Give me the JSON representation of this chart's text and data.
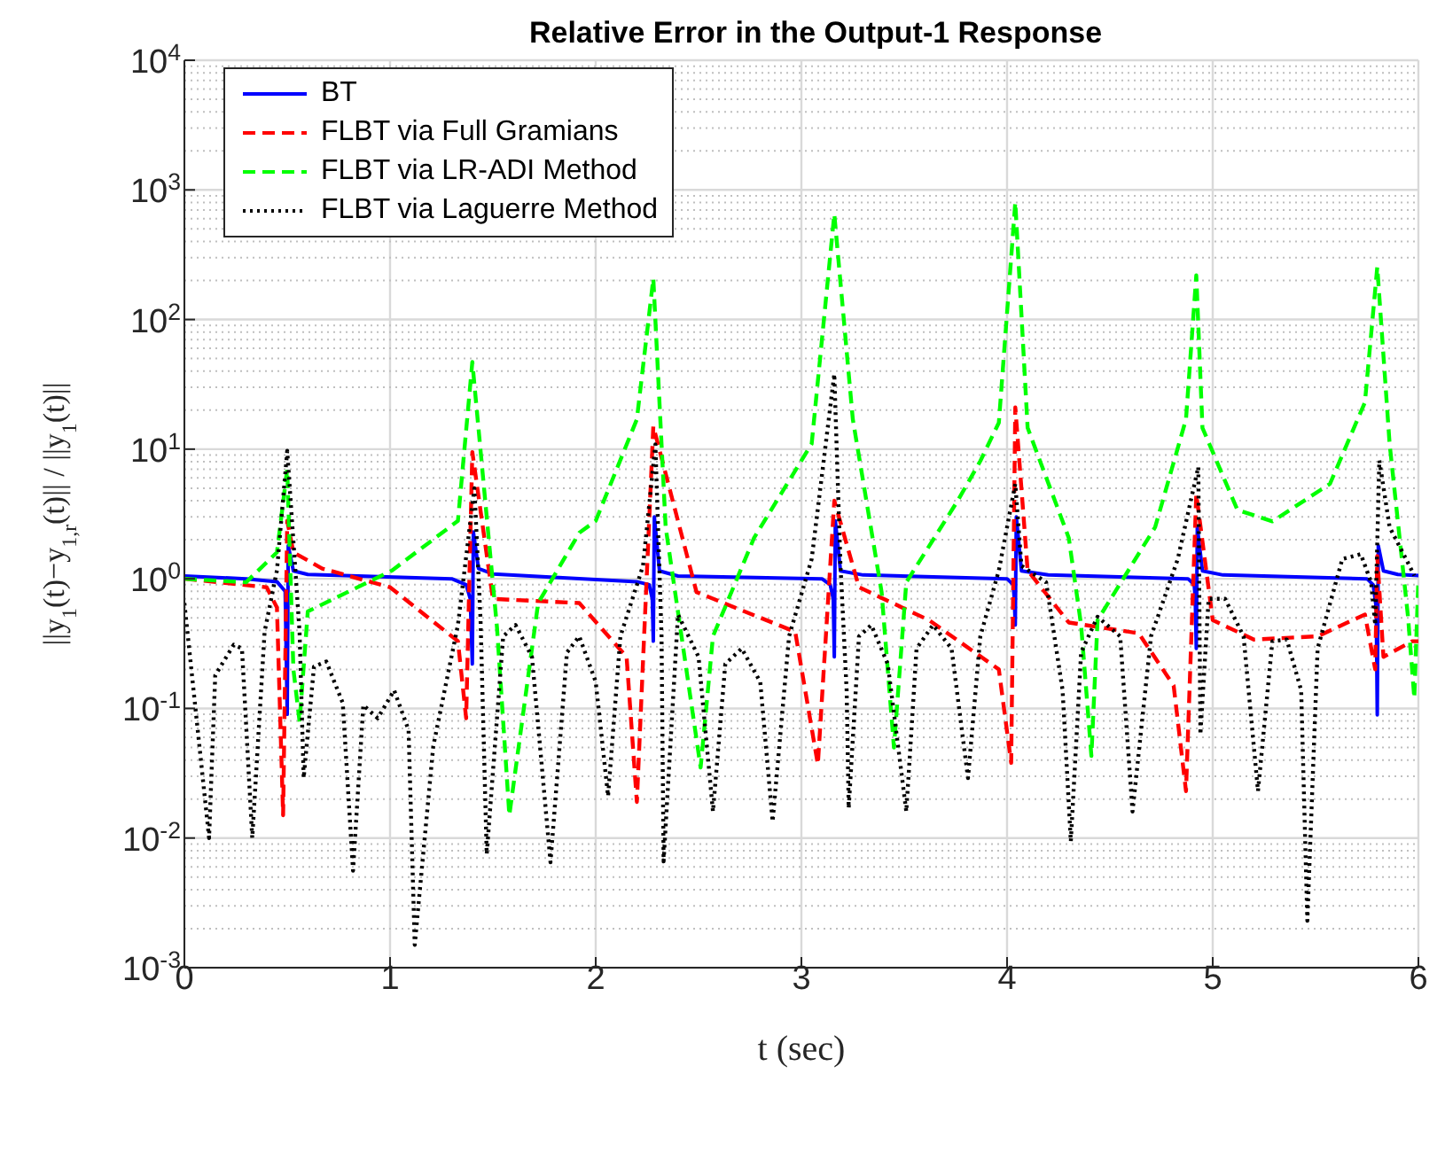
{
  "chart_data": {
    "type": "line",
    "title": "Relative Error in the Output-1 Response",
    "xlabel": "t (sec)",
    "ylabel": "||y$_{1}$(t)−y$_{1,r}$(t)|| / ||y$_{1}$(t)||",
    "log": "y",
    "grid": true,
    "legend": "top left",
    "xlim": [
      0,
      6
    ],
    "xticks": [
      0,
      1,
      2,
      3,
      4,
      5,
      6
    ],
    "ylim": [
      0.001,
      10000
    ],
    "yticks": [
      {
        "value": 0.001,
        "label": "10$^{-3}$"
      },
      {
        "value": 0.01,
        "label": "10$^{-2}$"
      },
      {
        "value": 0.1,
        "label": "10$^{-1}$"
      },
      {
        "value": 1,
        "label": "10$^{0}$"
      },
      {
        "value": 10,
        "label": "10$^{1}$"
      },
      {
        "value": 100,
        "label": "10$^{2}$"
      },
      {
        "value": 1000,
        "label": "10$^{3}$"
      },
      {
        "value": 10000,
        "label": "10$^{4}$"
      }
    ],
    "series": [
      {
        "name": "BT",
        "color": "#0000ff",
        "line_style": "solid",
        "x": [
          0,
          0.3,
          0.45,
          0.49,
          0.5,
          0.505,
          0.53,
          0.6,
          1.3,
          1.37,
          1.39,
          1.4,
          1.405,
          1.43,
          1.5,
          2.2,
          2.26,
          2.275,
          2.28,
          2.285,
          2.31,
          2.4,
          3.1,
          3.14,
          3.155,
          3.16,
          3.165,
          3.19,
          3.3,
          4.0,
          4.03,
          4.035,
          4.04,
          4.045,
          4.07,
          4.2,
          4.88,
          4.91,
          4.915,
          4.92,
          4.925,
          4.95,
          5.05,
          5.75,
          5.78,
          5.795,
          5.8,
          5.805,
          5.83,
          5.9,
          6.0
        ],
        "values": [
          1.05,
          1.0,
          0.95,
          0.8,
          0.09,
          1.8,
          1.15,
          1.08,
          1.0,
          0.9,
          0.7,
          0.22,
          2.3,
          1.2,
          1.09,
          0.95,
          0.9,
          0.7,
          0.33,
          3.0,
          1.15,
          1.05,
          1.0,
          0.9,
          0.7,
          0.25,
          2.8,
          1.15,
          1.07,
          1.0,
          0.9,
          0.7,
          0.44,
          3.0,
          1.15,
          1.07,
          1.0,
          0.9,
          0.7,
          0.29,
          2.5,
          1.15,
          1.07,
          1.0,
          0.9,
          0.6,
          0.089,
          1.8,
          1.15,
          1.08,
          1.06
        ]
      },
      {
        "name": "FLBT via Full Gramians",
        "color": "#ff0000",
        "line_style": "dashed",
        "x": [
          0,
          0.4,
          0.45,
          0.48,
          0.5,
          0.53,
          0.67,
          1.0,
          1.33,
          1.37,
          1.4,
          1.5,
          1.92,
          2.15,
          2.2,
          2.28,
          2.49,
          2.97,
          3.08,
          3.16,
          3.28,
          3.62,
          3.96,
          4.02,
          4.04,
          4.1,
          4.3,
          4.64,
          4.81,
          4.87,
          4.92,
          5.0,
          5.2,
          5.51,
          5.74,
          5.79,
          5.8,
          5.83,
          5.97,
          6.0
        ],
        "values": [
          1.0,
          0.86,
          0.6,
          0.015,
          2.8,
          1.6,
          1.2,
          0.86,
          0.33,
          0.084,
          9.5,
          0.7,
          0.65,
          0.25,
          0.019,
          15,
          0.79,
          0.39,
          0.037,
          4.0,
          0.86,
          0.48,
          0.2,
          0.038,
          21,
          1.16,
          0.46,
          0.38,
          0.15,
          0.023,
          4.5,
          0.48,
          0.34,
          0.36,
          0.53,
          0.2,
          1.5,
          0.25,
          0.33,
          0.33
        ]
      },
      {
        "name": "FLBT via LR-ADI Method",
        "color": "#00ff00",
        "line_style": "dashed",
        "x": [
          0,
          0.3,
          0.45,
          0.5,
          0.53,
          0.56,
          0.6,
          1.01,
          1.33,
          1.4,
          1.52,
          1.58,
          1.72,
          1.92,
          2.0,
          2.2,
          2.28,
          2.34,
          2.51,
          2.57,
          2.77,
          3.05,
          3.16,
          3.25,
          3.39,
          3.45,
          3.51,
          3.76,
          3.87,
          3.96,
          4.04,
          4.1,
          4.3,
          4.36,
          4.41,
          4.44,
          4.72,
          4.87,
          4.92,
          4.95,
          5.12,
          5.29,
          5.57,
          5.74,
          5.8,
          5.86,
          5.95,
          5.98,
          6.0
        ],
        "values": [
          1.0,
          0.94,
          1.6,
          7.0,
          0.2,
          0.079,
          0.56,
          1.16,
          2.8,
          47,
          0.42,
          0.015,
          0.65,
          2.26,
          2.8,
          17,
          207,
          2.5,
          0.035,
          0.36,
          2.07,
          11,
          650,
          17,
          0.79,
          0.05,
          0.94,
          4.0,
          8.1,
          16,
          800,
          14.6,
          2.07,
          0.44,
          0.043,
          0.48,
          2.5,
          17,
          219,
          14.6,
          3.4,
          2.77,
          5.4,
          23,
          254,
          11,
          0.5,
          0.12,
          1.0
        ]
      },
      {
        "name": "FLBT via Laguerre Method",
        "color": "#000000",
        "line_style": "dotted",
        "x": [
          0,
          0.12,
          0.15,
          0.24,
          0.28,
          0.33,
          0.39,
          0.45,
          0.5,
          0.56,
          0.58,
          0.63,
          0.69,
          0.77,
          0.82,
          0.87,
          0.94,
          1.02,
          1.09,
          1.12,
          1.21,
          1.33,
          1.41,
          1.44,
          1.47,
          1.55,
          1.61,
          1.69,
          1.78,
          1.86,
          1.92,
          2.0,
          2.06,
          2.12,
          2.23,
          2.29,
          2.32,
          2.33,
          2.4,
          2.5,
          2.57,
          2.63,
          2.71,
          2.8,
          2.86,
          2.94,
          3.05,
          3.16,
          3.19,
          3.22,
          3.23,
          3.28,
          3.34,
          3.42,
          3.51,
          3.56,
          3.64,
          3.73,
          3.81,
          3.87,
          3.96,
          4.04,
          4.07,
          4.19,
          4.27,
          4.31,
          4.36,
          4.44,
          4.55,
          4.61,
          4.7,
          4.83,
          4.93,
          4.94,
          4.98,
          5.06,
          5.15,
          5.22,
          5.29,
          5.36,
          5.43,
          5.46,
          5.51,
          5.63,
          5.72,
          5.77,
          5.79,
          5.81,
          5.86,
          5.94,
          5.98
        ],
        "values": [
          0.65,
          0.01,
          0.18,
          0.31,
          0.29,
          0.01,
          0.39,
          1.16,
          9.7,
          0.39,
          0.029,
          0.21,
          0.23,
          0.11,
          0.0056,
          0.106,
          0.084,
          0.138,
          0.068,
          0.0015,
          0.051,
          0.44,
          5.0,
          0.48,
          0.0075,
          0.36,
          0.44,
          0.25,
          0.0065,
          0.27,
          0.36,
          0.16,
          0.021,
          0.36,
          1.26,
          10.9,
          0.36,
          0.0066,
          0.53,
          0.25,
          0.016,
          0.22,
          0.29,
          0.16,
          0.0134,
          0.36,
          1.42,
          38,
          1.26,
          0.138,
          0.017,
          0.36,
          0.44,
          0.22,
          0.016,
          0.29,
          0.44,
          0.29,
          0.029,
          0.36,
          1.16,
          5.4,
          1.26,
          0.94,
          0.138,
          0.0094,
          0.27,
          0.51,
          0.36,
          0.016,
          0.36,
          1.42,
          7.3,
          0.063,
          0.7,
          0.7,
          0.36,
          0.023,
          0.33,
          0.34,
          0.138,
          0.0023,
          0.29,
          1.42,
          1.55,
          0.94,
          0.44,
          8.2,
          2.5,
          1.42,
          1.06
        ]
      }
    ]
  }
}
